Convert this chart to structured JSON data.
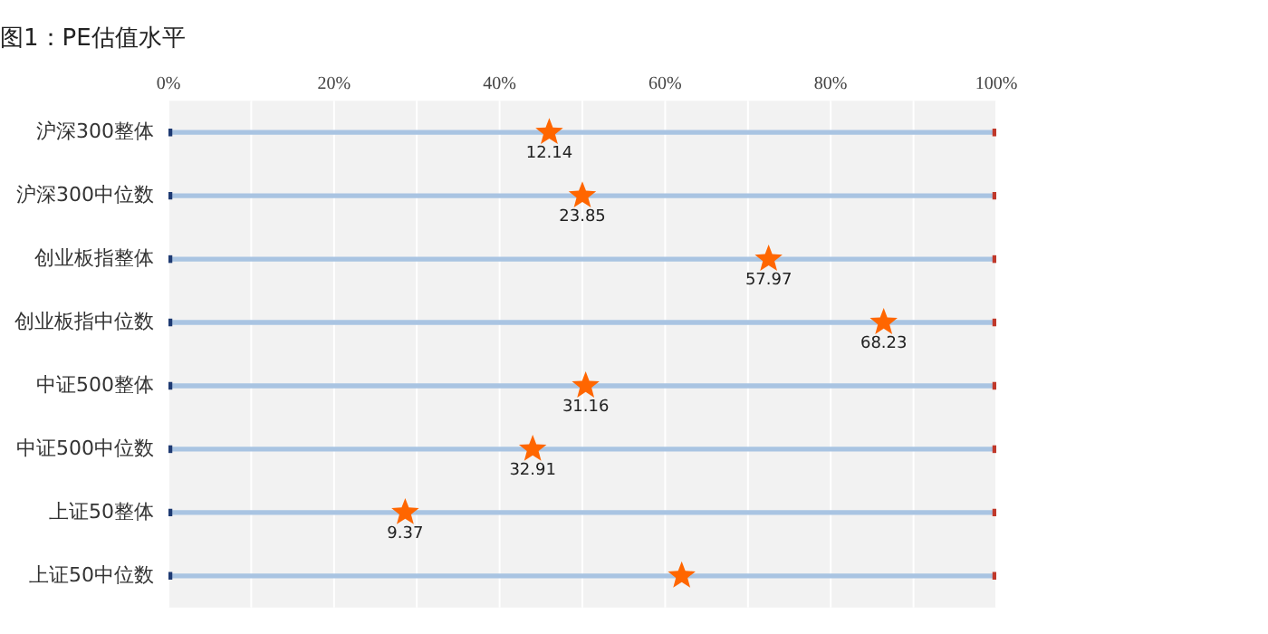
{
  "chart_data": {
    "type": "bar",
    "orientation": "horizontal",
    "title": "图1：PE估值水平",
    "categories": [
      "沪深300整体",
      "沪深300中位数",
      "创业板指整体",
      "创业板指中位数",
      "中证500整体",
      "中证500中位数",
      "上证50整体",
      "上证50中位数"
    ],
    "series": [
      {
        "type": "bar",
        "color": "#a9c4e2",
        "values": [
          100,
          100,
          100,
          100,
          100,
          100,
          100,
          100
        ]
      },
      {
        "type": "scatter",
        "marker": "square",
        "color": "#1f3b73",
        "values": [
          0,
          0,
          0,
          0,
          0,
          0,
          0,
          0
        ]
      },
      {
        "type": "scatter",
        "marker": "square",
        "color": "#c0392b",
        "values": [
          100,
          100,
          100,
          100,
          100,
          100,
          100,
          100
        ]
      },
      {
        "type": "scatter",
        "marker": "star",
        "color": "#ff6600",
        "values": [
          46,
          50,
          72.5,
          86.4,
          50.4,
          44,
          28.6,
          62
        ]
      }
    ],
    "annotations": [
      {
        "text": "12.14",
        "x": 46,
        "y": "沪深300整体"
      },
      {
        "text": "23.85",
        "x": 50,
        "y": "沪深300中位数"
      },
      {
        "text": "57.97",
        "x": 72.5,
        "y": "创业板指整体"
      },
      {
        "text": "68.23",
        "x": 86.4,
        "y": "创业板指中位数"
      },
      {
        "text": "31.16",
        "x": 50.4,
        "y": "中证500整体"
      },
      {
        "text": "32.91",
        "x": 44,
        "y": "中证500中位数"
      },
      {
        "text": "9.37",
        "x": 28.6,
        "y": "上证50整体"
      }
    ],
    "xlim": [
      0,
      100
    ],
    "xticks": [
      {
        "value": 0,
        "label": "0%"
      },
      {
        "value": 10,
        "label": null
      },
      {
        "value": 20,
        "label": "20%"
      },
      {
        "value": 30,
        "label": null
      },
      {
        "value": 40,
        "label": "40%"
      },
      {
        "value": 50,
        "label": null
      },
      {
        "value": 60,
        "label": "60%"
      },
      {
        "value": 70,
        "label": null
      },
      {
        "value": 80,
        "label": "80%"
      },
      {
        "value": 90,
        "label": null
      },
      {
        "value": 100,
        "label": "100%"
      }
    ],
    "grid": "x",
    "legend": false
  }
}
